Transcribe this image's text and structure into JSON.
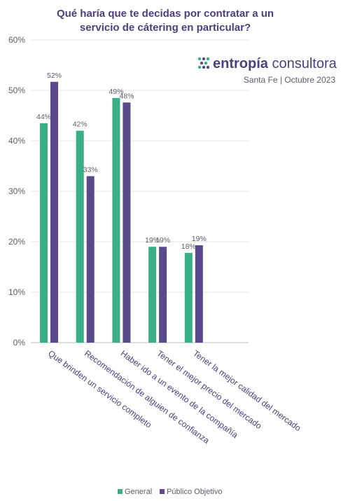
{
  "chart_data": {
    "type": "bar",
    "title_lines": [
      "Qué haría que te decidas por contratar a un",
      "servicio de cátering en particular?"
    ],
    "categories": [
      "Que brinden un servicio completo",
      "Recomendación de alguien de confianza",
      "Haber ido a un evento de la compañía",
      "Tener el mejor precio del mercado",
      "Tener la mejor calidad del mercado"
    ],
    "series": [
      {
        "name": "General",
        "color": "#3aaf85",
        "values": [
          43.5,
          42,
          48.5,
          19,
          17.8
        ],
        "labels": [
          "44%",
          "42%",
          "49%",
          "19%",
          "18%"
        ]
      },
      {
        "name": "Público Objetivo",
        "color": "#5a4a8c",
        "values": [
          51.7,
          33,
          47.6,
          19,
          19.3
        ],
        "labels": [
          "52%",
          "33%",
          "48%",
          "19%",
          "19%"
        ]
      }
    ],
    "yticks": [
      "0%",
      "10%",
      "20%",
      "30%",
      "40%",
      "50%",
      "60%"
    ],
    "ylim": [
      0,
      60
    ],
    "grid": true,
    "legend_position": "bottom-center"
  },
  "brand": {
    "name_bold": "entropía",
    "name_regular": " consultora",
    "subtitle": "Santa Fe | Octubre 2023",
    "logo_icon": "entropia-dots-logo-icon",
    "color": "#4b3f7d"
  }
}
